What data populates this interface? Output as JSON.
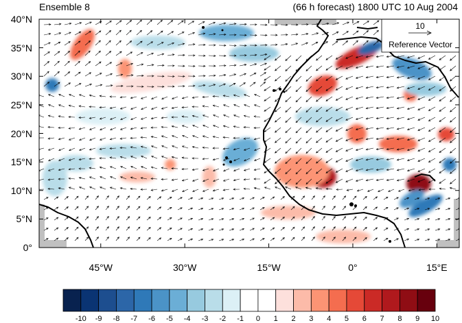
{
  "title_left": "Ensemble 8",
  "title_right": "(66 h forecast) 1800 UTC 10 Aug 2004",
  "lat_ticks": [
    {
      "lat": 40,
      "label": "40°N"
    },
    {
      "lat": 35,
      "label": "35°N"
    },
    {
      "lat": 30,
      "label": "30°N"
    },
    {
      "lat": 25,
      "label": "25°N"
    },
    {
      "lat": 20,
      "label": "20°N"
    },
    {
      "lat": 15,
      "label": "15°N"
    },
    {
      "lat": 10,
      "label": "10°N"
    },
    {
      "lat": 5,
      "label": "5°N"
    },
    {
      "lat": 0,
      "label": "0°"
    }
  ],
  "lon_ticks": [
    {
      "lon": -45,
      "label": "45°W"
    },
    {
      "lon": -30,
      "label": "30°W"
    },
    {
      "lon": -15,
      "label": "15°W"
    },
    {
      "lon": 0,
      "label": "0°"
    },
    {
      "lon": 15,
      "label": "15°E"
    }
  ],
  "map_extent": {
    "lon_min": -56,
    "lon_max": 19,
    "lat_min": 0,
    "lat_max": 40
  },
  "reference_vector": {
    "magnitude": "10",
    "label": "Reference Vector"
  },
  "colorbar": {
    "labels": [
      "-10",
      "-9",
      "-8",
      "-7",
      "-6",
      "-5",
      "-4",
      "-3",
      "-2",
      "-1",
      "0",
      "1",
      "2",
      "3",
      "4",
      "5",
      "6",
      "7",
      "8",
      "9",
      "10"
    ],
    "colors": [
      "#08224f",
      "#0a3473",
      "#1d4e8f",
      "#2c66a8",
      "#2f79b8",
      "#4b93c7",
      "#6baed6",
      "#97cadf",
      "#b9dde9",
      "#dcf0f6",
      "#ffffff",
      "#ffffff",
      "#fde0dc",
      "#fcbba9",
      "#fc9474",
      "#f46d4f",
      "#e54937",
      "#cb2a26",
      "#b0191d",
      "#8f0d14",
      "#67000d"
    ]
  }
}
